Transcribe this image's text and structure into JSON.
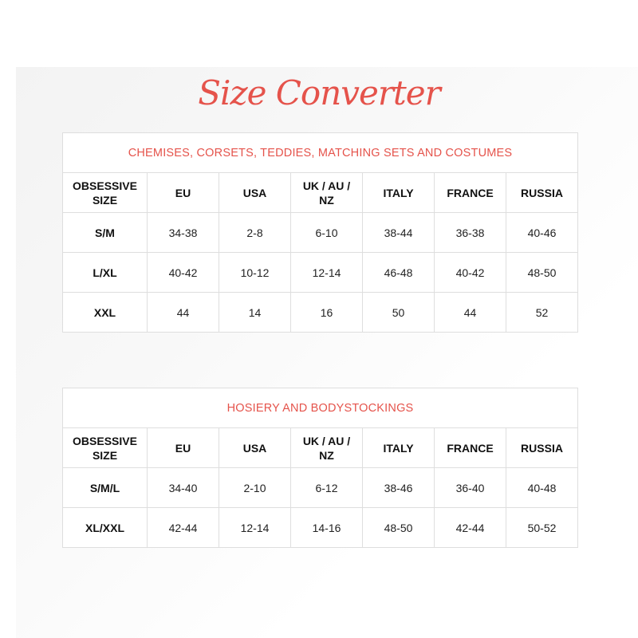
{
  "title": "Size Converter",
  "accent": "#e5534b",
  "columns": [
    "OBSESSIVE SIZE",
    "EU",
    "USA",
    "UK / AU / NZ",
    "ITALY",
    "FRANCE",
    "RUSSIA"
  ],
  "tables": [
    {
      "caption": "CHEMISES, CORSETS, TEDDIES, MATCHING SETS AND COSTUMES",
      "rows": [
        [
          "S/M",
          "34-38",
          "2-8",
          "6-10",
          "38-44",
          "36-38",
          "40-46"
        ],
        [
          "L/XL",
          "40-42",
          "10-12",
          "12-14",
          "46-48",
          "40-42",
          "48-50"
        ],
        [
          "XXL",
          "44",
          "14",
          "16",
          "50",
          "44",
          "52"
        ]
      ]
    },
    {
      "caption": "HOSIERY AND BODYSTOCKINGS",
      "rows": [
        [
          "S/M/L",
          "34-40",
          "2-10",
          "6-12",
          "38-46",
          "36-40",
          "40-48"
        ],
        [
          "XL/XXL",
          "42-44",
          "12-14",
          "14-16",
          "48-50",
          "42-44",
          "50-52"
        ]
      ]
    }
  ]
}
